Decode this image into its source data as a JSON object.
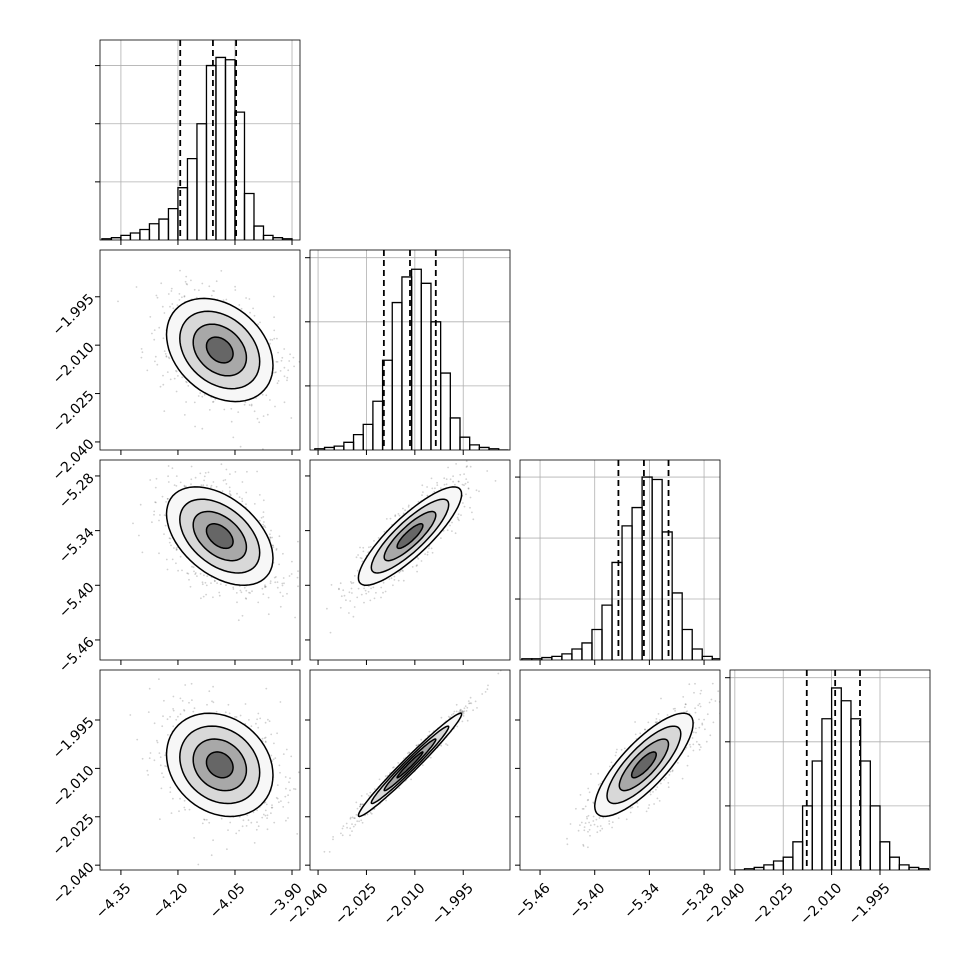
{
  "chart_data": {
    "type": "corner",
    "parameters": [
      {
        "xlim": [
          -4.405,
          -3.879
        ],
        "xticks": [
          {
            "value": -4.35,
            "label": "−4.35"
          },
          {
            "value": -4.2,
            "label": "−4.20"
          },
          {
            "value": -4.05,
            "label": "−4.05"
          },
          {
            "value": -3.9,
            "label": "−3.90"
          }
        ],
        "quantiles": [
          -4.194,
          -4.108,
          -4.047
        ],
        "hist": {
          "bins": [
            -4.4,
            -4.375,
            -4.35,
            -4.325,
            -4.3,
            -4.275,
            -4.25,
            -4.225,
            -4.2,
            -4.175,
            -4.15,
            -4.125,
            -4.1,
            -4.075,
            -4.05,
            -4.025,
            -4.0,
            -3.975,
            -3.95,
            -3.925,
            -3.9
          ],
          "counts": [
            1,
            2,
            4,
            6,
            9,
            14,
            18,
            27,
            45,
            70,
            100,
            150,
            157,
            155,
            110,
            40,
            12,
            4,
            2,
            1
          ],
          "ylim": [
            0,
            172
          ],
          "yticks": [
            50,
            100,
            150
          ]
        }
      },
      {
        "xlim": [
          -2.0425,
          -1.9805
        ],
        "xticks": [
          {
            "value": -2.04,
            "label": "−2.040"
          },
          {
            "value": -2.025,
            "label": "−2.025"
          },
          {
            "value": -2.01,
            "label": "−2.010"
          },
          {
            "value": -1.995,
            "label": "−1.995"
          }
        ],
        "quantiles": [
          -2.0196,
          -2.0115,
          -2.0035
        ],
        "hist": {
          "bins": [
            -2.041,
            -2.038,
            -2.035,
            -2.032,
            -2.029,
            -2.026,
            -2.023,
            -2.02,
            -2.017,
            -2.014,
            -2.011,
            -2.008,
            -2.005,
            -2.002,
            -1.999,
            -1.996,
            -1.993,
            -1.99,
            -1.987,
            -1.984,
            -1.981
          ],
          "counts": [
            1,
            2,
            3,
            6,
            12,
            20,
            38,
            70,
            115,
            135,
            141,
            130,
            100,
            60,
            25,
            10,
            4,
            2,
            1,
            0
          ],
          "ylim": [
            0,
            156
          ],
          "yticks": [
            50,
            100,
            150
          ]
        }
      },
      {
        "xlim": [
          -5.482,
          -5.2625
        ],
        "xticks": [
          {
            "value": -5.46,
            "label": "−5.46"
          },
          {
            "value": -5.4,
            "label": "−5.40"
          },
          {
            "value": -5.34,
            "label": "−5.34"
          },
          {
            "value": -5.28,
            "label": "−5.28"
          }
        ],
        "quantiles": [
          -5.374,
          -5.346,
          -5.319
        ],
        "hist": {
          "bins": [
            -5.48,
            -5.469,
            -5.458,
            -5.447,
            -5.436,
            -5.425,
            -5.414,
            -5.403,
            -5.392,
            -5.381,
            -5.37,
            -5.359,
            -5.348,
            -5.337,
            -5.326,
            -5.315,
            -5.304,
            -5.293,
            -5.282,
            -5.271,
            -5.26
          ],
          "counts": [
            1,
            1,
            2,
            3,
            5,
            9,
            14,
            25,
            45,
            80,
            110,
            125,
            150,
            148,
            105,
            55,
            25,
            9,
            3,
            1
          ],
          "ylim": [
            0,
            164
          ],
          "yticks": [
            50,
            100,
            150
          ]
        }
      },
      {
        "xlim": [
          -2.0415,
          -1.9795
        ],
        "xticks": [
          {
            "value": -2.04,
            "label": "−2.040"
          },
          {
            "value": -2.025,
            "label": "−2.025"
          },
          {
            "value": -2.01,
            "label": "−2.010"
          },
          {
            "value": -1.995,
            "label": "−1.995"
          }
        ],
        "quantiles": [
          -2.0177,
          -2.0089,
          -2.0012
        ],
        "hist": {
          "bins": [
            -2.04,
            -2.037,
            -2.034,
            -2.031,
            -2.028,
            -2.025,
            -2.022,
            -2.019,
            -2.016,
            -2.013,
            -2.01,
            -2.007,
            -2.004,
            -2.001,
            -1.998,
            -1.995,
            -1.992,
            -1.989,
            -1.986,
            -1.983,
            -1.98
          ],
          "counts": [
            0,
            1,
            2,
            4,
            7,
            10,
            22,
            50,
            85,
            118,
            142,
            132,
            118,
            85,
            50,
            22,
            10,
            4,
            2,
            1
          ],
          "ylim": [
            0,
            156
          ],
          "yticks": [
            50,
            100,
            150
          ]
        }
      }
    ],
    "pairs": [
      {
        "x": 0,
        "y": 1,
        "mean": [
          -4.09,
          -2.0115
        ],
        "sd": [
          0.07,
          0.008
        ],
        "rho": -0.3
      },
      {
        "x": 0,
        "y": 2,
        "mean": [
          -4.09,
          -5.346
        ],
        "sd": [
          0.07,
          0.027
        ],
        "rho": -0.45
      },
      {
        "x": 1,
        "y": 2,
        "mean": [
          -2.0115,
          -5.346
        ],
        "sd": [
          0.008,
          0.027
        ],
        "rho": 0.85
      },
      {
        "x": 0,
        "y": 3,
        "mean": [
          -4.09,
          -2.0089
        ],
        "sd": [
          0.07,
          0.008
        ],
        "rho": -0.2
      },
      {
        "x": 1,
        "y": 3,
        "mean": [
          -2.0115,
          -2.0089
        ],
        "sd": [
          0.008,
          0.008
        ],
        "rho": 0.98
      },
      {
        "x": 2,
        "y": 3,
        "mean": [
          -5.346,
          -2.0089
        ],
        "sd": [
          0.027,
          0.008
        ],
        "rho": 0.8
      }
    ]
  }
}
